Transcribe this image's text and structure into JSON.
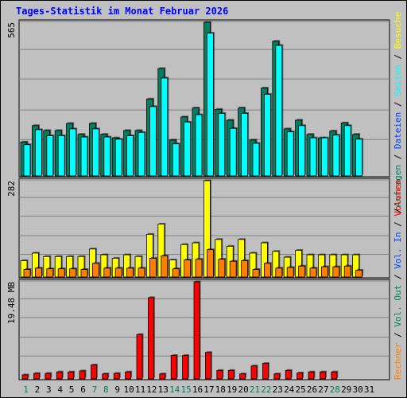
{
  "title": "Tages-Statistik im Monat Februar 2026",
  "colors": {
    "background": "#c0c0c0",
    "title": "#0000ff",
    "day_normal": "#000000",
    "day_weekend": "#00805c",
    "anfragen": "#008060",
    "dateien": "#0040ff",
    "seiten": "#00ffff",
    "besuche": "#ffff00",
    "rechner": "#ff8000",
    "vol_out": "#00805c",
    "vol_in": "#0040ff",
    "volumen": "#ff0000",
    "separator": "#000000"
  },
  "right_legend": {
    "top": [
      {
        "text": "Anfragen",
        "color": "#008060"
      },
      {
        "text": "Dateien",
        "color": "#0040ff"
      },
      {
        "text": "Seiten",
        "color": "#00ffff"
      },
      {
        "text": "Besuche",
        "color": "#ffff00"
      }
    ],
    "bottom": [
      {
        "text": "Rechner",
        "color": "#ff8000"
      },
      {
        "text": "Vol. Out",
        "color": "#00805c"
      },
      {
        "text": "Vol. In",
        "color": "#0040ff"
      },
      {
        "text": "Volumen",
        "color": "#ff0000"
      }
    ],
    "separator": "/"
  },
  "chart_data": {
    "type": "bar",
    "categories": [
      "1",
      "2",
      "3",
      "4",
      "5",
      "6",
      "7",
      "8",
      "9",
      "10",
      "11",
      "12",
      "13",
      "14",
      "15",
      "16",
      "17",
      "18",
      "19",
      "20",
      "21",
      "22",
      "23",
      "24",
      "25",
      "26",
      "27",
      "28",
      "29",
      "30",
      "31"
    ],
    "weekend_days": [
      "1",
      "7",
      "8",
      "14",
      "15",
      "21",
      "22",
      "28"
    ],
    "grid": true,
    "panels": [
      {
        "name": "top",
        "max_label": "565",
        "ylim": [
          0,
          565
        ],
        "series": [
          {
            "name": "Anfragen",
            "color": "#008060",
            "values": [
              125,
              185,
              167,
              167,
              193,
              153,
              193,
              153,
              140,
              167,
              167,
              283,
              395,
              132,
              217,
              250,
              565,
              245,
              205,
              250,
              132,
              323,
              495,
              173,
              205,
              153,
              140,
              165,
              195,
              153,
              0
            ]
          },
          {
            "name": "Seiten",
            "color": "#00ffff",
            "values": [
              115,
              170,
              148,
              148,
              173,
              143,
              173,
              143,
              135,
              148,
              160,
              255,
              360,
              118,
              198,
              225,
              525,
              230,
              175,
              230,
              120,
              300,
              480,
              162,
              185,
              140,
              140,
              150,
              185,
              135,
              0
            ]
          }
        ]
      },
      {
        "name": "middle",
        "max_label": "282",
        "ylim": [
          0,
          282
        ],
        "series": [
          {
            "name": "Besuche",
            "color": "#ffff00",
            "values": [
              48,
              70,
              60,
              60,
              60,
              60,
              82,
              65,
              55,
              65,
              60,
              125,
              155,
              50,
              95,
              100,
              282,
              110,
              90,
              110,
              70,
              100,
              75,
              58,
              78,
              65,
              65,
              65,
              65,
              65,
              0
            ]
          },
          {
            "name": "Rechner",
            "color": "#ff8000",
            "values": [
              22,
              26,
              24,
              24,
              24,
              22,
              40,
              26,
              26,
              26,
              26,
              55,
              62,
              24,
              50,
              52,
              80,
              52,
              46,
              48,
              22,
              40,
              26,
              28,
              32,
              26,
              30,
              30,
              32,
              20,
              0
            ]
          }
        ]
      },
      {
        "name": "bottom",
        "max_label": "19.48 MB",
        "ylim": [
          0,
          19.48
        ],
        "series": [
          {
            "name": "Volumen",
            "color": "#ff0000",
            "values": [
              0.8,
              1.1,
              1.1,
              1.4,
              1.4,
              1.6,
              2.8,
              1.0,
              1.1,
              1.4,
              8.9,
              16.3,
              1.0,
              4.7,
              4.7,
              19.48,
              5.3,
              1.7,
              1.7,
              1.0,
              2.6,
              3.1,
              1.0,
              1.7,
              1.2,
              1.4,
              1.4,
              1.4,
              0,
              0,
              0
            ]
          }
        ]
      }
    ]
  }
}
